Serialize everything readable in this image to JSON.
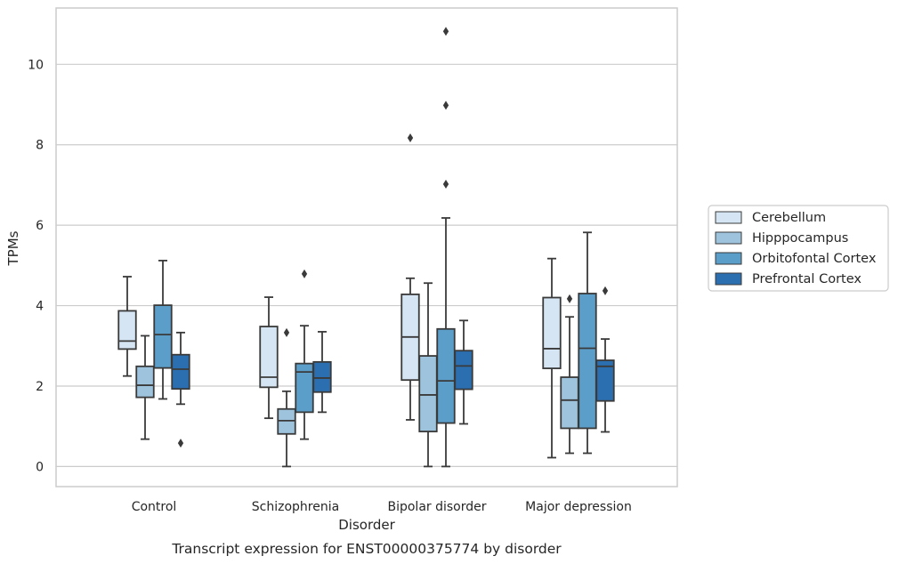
{
  "chart_data": {
    "type": "box",
    "title": "",
    "caption": "Transcript expression for ENST00000375774 by disorder",
    "xlabel": "Disorder",
    "ylabel": "TPMs",
    "ylim": [
      -0.5,
      11.4
    ],
    "yticks": [
      "0",
      "2",
      "4",
      "6",
      "8",
      "10"
    ],
    "grid": "horizontal",
    "legend_placement": "right",
    "categories": [
      "Control",
      "Schizophrenia",
      "Bipolar disorder",
      "Major depression"
    ],
    "series": [
      {
        "name": "Cerebellum",
        "color": "#d6e5f4",
        "boxes": [
          {
            "whislo": 2.25,
            "q1": 2.92,
            "med": 3.12,
            "q3": 3.87,
            "whishi": 4.72,
            "fliers": []
          },
          {
            "whislo": 1.2,
            "q1": 1.97,
            "med": 2.22,
            "q3": 3.48,
            "whishi": 4.21,
            "fliers": []
          },
          {
            "whislo": 1.16,
            "q1": 2.15,
            "med": 3.22,
            "q3": 4.28,
            "whishi": 4.68,
            "fliers": [
              8.17
            ]
          },
          {
            "whislo": 0.22,
            "q1": 2.44,
            "med": 2.93,
            "q3": 4.2,
            "whishi": 5.17,
            "fliers": []
          }
        ]
      },
      {
        "name": "Hipppocampus",
        "color": "#9ec4dd",
        "boxes": [
          {
            "whislo": 0.68,
            "q1": 1.72,
            "med": 2.02,
            "q3": 2.49,
            "whishi": 3.25,
            "fliers": []
          },
          {
            "whislo": 0.0,
            "q1": 0.81,
            "med": 1.14,
            "q3": 1.43,
            "whishi": 1.87,
            "fliers": [
              3.33
            ]
          },
          {
            "whislo": 0.0,
            "q1": 0.87,
            "med": 1.78,
            "q3": 2.75,
            "whishi": 4.56,
            "fliers": []
          },
          {
            "whislo": 0.33,
            "q1": 0.95,
            "med": 1.65,
            "q3": 2.22,
            "whishi": 3.72,
            "fliers": [
              4.17
            ]
          }
        ]
      },
      {
        "name": "Orbitofontal Cortex",
        "color": "#5a9ec9",
        "boxes": [
          {
            "whislo": 1.68,
            "q1": 2.45,
            "med": 3.28,
            "q3": 4.01,
            "whishi": 5.12,
            "fliers": []
          },
          {
            "whislo": 0.68,
            "q1": 1.35,
            "med": 2.35,
            "q3": 2.56,
            "whishi": 3.5,
            "fliers": [
              4.79
            ]
          },
          {
            "whislo": 0.0,
            "q1": 1.08,
            "med": 2.13,
            "q3": 3.42,
            "whishi": 6.18,
            "fliers": [
              7.02,
              8.98,
              10.82
            ]
          },
          {
            "whislo": 0.33,
            "q1": 0.95,
            "med": 2.94,
            "q3": 4.3,
            "whishi": 5.82,
            "fliers": []
          }
        ]
      },
      {
        "name": "Prefrontal Cortex",
        "color": "#2c6fb0",
        "boxes": [
          {
            "whislo": 1.55,
            "q1": 1.93,
            "med": 2.42,
            "q3": 2.78,
            "whishi": 3.33,
            "fliers": [
              0.58
            ]
          },
          {
            "whislo": 1.35,
            "q1": 1.85,
            "med": 2.2,
            "q3": 2.6,
            "whishi": 3.35,
            "fliers": []
          },
          {
            "whislo": 1.06,
            "q1": 1.92,
            "med": 2.5,
            "q3": 2.88,
            "whishi": 3.63,
            "fliers": []
          },
          {
            "whislo": 0.86,
            "q1": 1.63,
            "med": 2.49,
            "q3": 2.64,
            "whishi": 3.17,
            "fliers": [
              4.37
            ]
          }
        ]
      }
    ]
  }
}
